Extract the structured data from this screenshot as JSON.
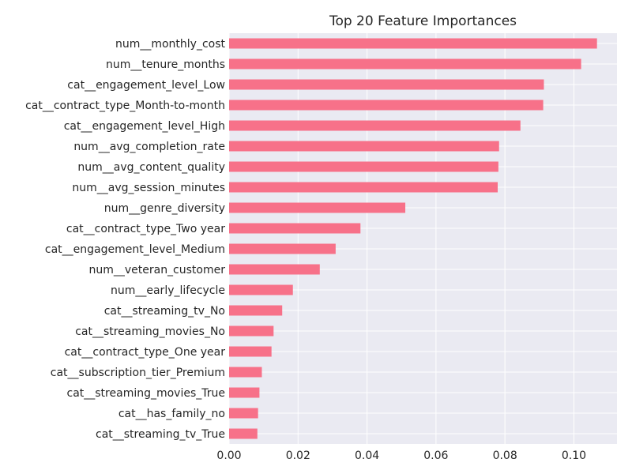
{
  "chart_data": {
    "type": "bar",
    "orientation": "horizontal",
    "title": "Top 20 Feature Importances",
    "xlabel": "",
    "ylabel": "",
    "xlim": [
      0,
      0.1125
    ],
    "xticks": [
      "0.00",
      "0.02",
      "0.04",
      "0.06",
      "0.08",
      "0.10"
    ],
    "xtick_values": [
      0.0,
      0.02,
      0.04,
      0.06,
      0.08,
      0.1
    ],
    "grid": true,
    "bar_color": "#f77189",
    "background_color": "#eaeaf2",
    "categories": [
      "num__monthly_cost",
      "num__tenure_months",
      "cat__engagement_level_Low",
      "cat__contract_type_Month-to-month",
      "cat__engagement_level_High",
      "num__avg_completion_rate",
      "num__avg_content_quality",
      "num__avg_session_minutes",
      "num__genre_diversity",
      "cat__contract_type_Two year",
      "cat__engagement_level_Medium",
      "num__veteran_customer",
      "num__early_lifecycle",
      "cat__streaming_tv_No",
      "cat__streaming_movies_No",
      "cat__contract_type_One year",
      "cat__subscription_tier_Premium",
      "cat__streaming_movies_True",
      "cat__has_family_no",
      "cat__streaming_tv_True"
    ],
    "values": [
      0.1067,
      0.1021,
      0.0913,
      0.0911,
      0.0845,
      0.0783,
      0.0781,
      0.0779,
      0.0511,
      0.0381,
      0.0309,
      0.0263,
      0.0185,
      0.0154,
      0.0129,
      0.0123,
      0.0095,
      0.0088,
      0.0084,
      0.0082
    ]
  }
}
